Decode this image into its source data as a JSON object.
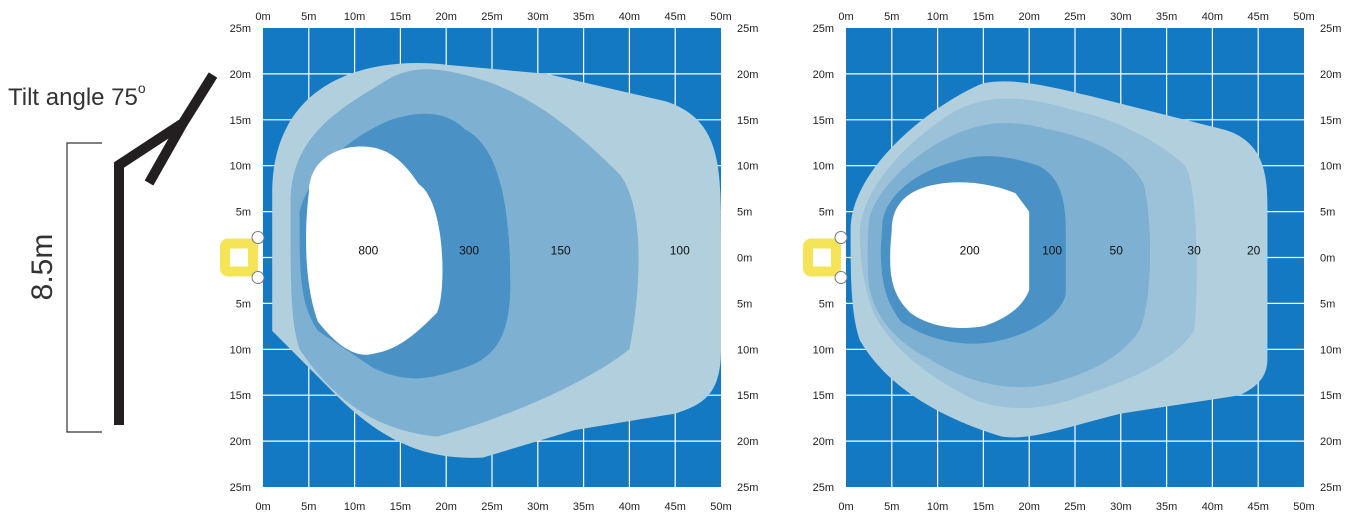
{
  "pole": {
    "tilt_label": "Tilt angle 75",
    "tilt_unit": "o",
    "height_label": "8.5m"
  },
  "colors": {
    "grid_bg": "#1279c2",
    "grid_line": "#ffffff",
    "fixture": "#f5e358",
    "zone_colors": [
      "#b2cfdd",
      "#7eb0d2",
      "#4a92c6",
      "#ffffff"
    ]
  },
  "plots": [
    {
      "id": "plot-left",
      "x_ticks": [
        "0m",
        "5m",
        "10m",
        "15m",
        "20m",
        "25m",
        "30m",
        "35m",
        "40m",
        "45m",
        "50m"
      ],
      "y_ticks": [
        "25m",
        "20m",
        "15m",
        "10m",
        "5m",
        "0m",
        "5m",
        "10m",
        "15m",
        "20m",
        "25m"
      ],
      "zones": [
        {
          "label": "100",
          "label_x": 45.5
        },
        {
          "label": "150",
          "label_x": 32.5
        },
        {
          "label": "300",
          "label_x": 22.5
        },
        {
          "label": "800",
          "label_x": 11.5
        }
      ]
    },
    {
      "id": "plot-right",
      "x_ticks": [
        "0m",
        "5m",
        "10m",
        "15m",
        "20m",
        "25m",
        "30m",
        "35m",
        "40m",
        "45m",
        "50m"
      ],
      "y_ticks": [
        "25m",
        "20m",
        "15m",
        "10m",
        "5m",
        "0m",
        "5m",
        "10m",
        "15m",
        "20m",
        "25m"
      ],
      "zones": [
        {
          "label": "20",
          "label_x": 44.5
        },
        {
          "label": "30",
          "label_x": 38
        },
        {
          "label": "50",
          "label_x": 29.5
        },
        {
          "label": "100",
          "label_x": 22.5
        },
        {
          "label": "200",
          "label_x": 13.5
        }
      ]
    }
  ]
}
